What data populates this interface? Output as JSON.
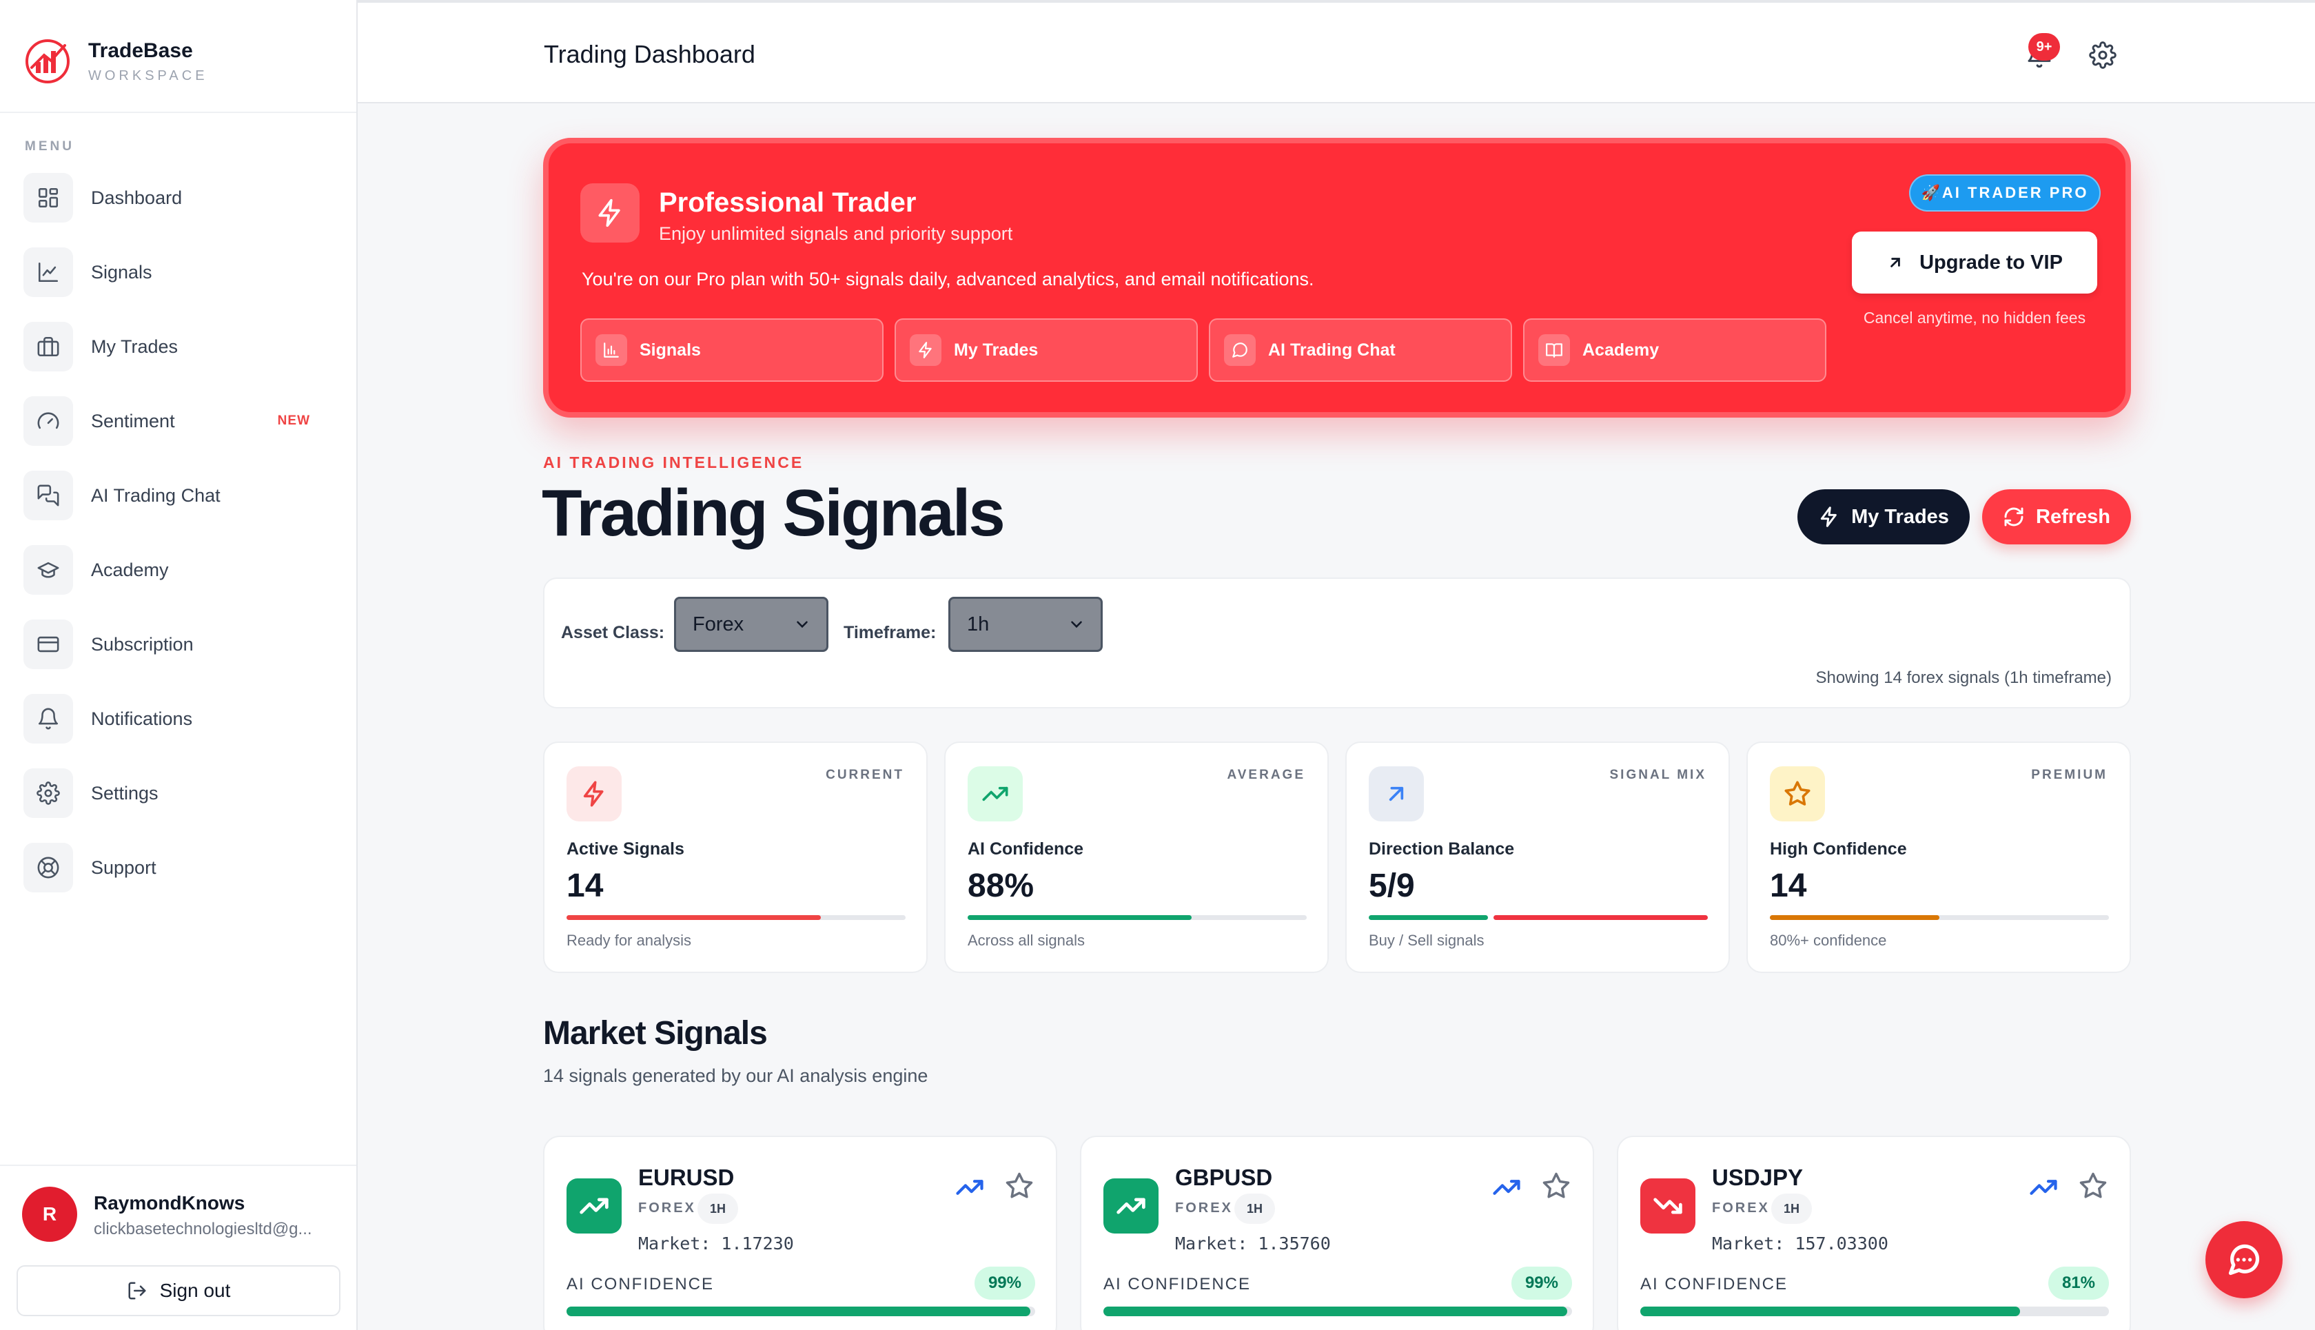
{
  "brand": {
    "name": "TradeBase",
    "sub": "WORKSPACE"
  },
  "sidebar": {
    "menu_heading": "MENU",
    "items": [
      {
        "label": "Dashboard",
        "icon": "grid-icon"
      },
      {
        "label": "Signals",
        "icon": "line-chart-icon"
      },
      {
        "label": "My Trades",
        "icon": "briefcase-icon"
      },
      {
        "label": "Sentiment",
        "icon": "gauge-icon",
        "badge": "NEW"
      },
      {
        "label": "AI Trading Chat",
        "icon": "chat-bubbles-icon"
      },
      {
        "label": "Academy",
        "icon": "graduation-cap-icon"
      },
      {
        "label": "Subscription",
        "icon": "credit-card-icon"
      },
      {
        "label": "Notifications",
        "icon": "bell-icon"
      },
      {
        "label": "Settings",
        "icon": "gear-icon"
      },
      {
        "label": "Support",
        "icon": "lifebuoy-icon"
      }
    ]
  },
  "user": {
    "initial": "R",
    "name": "RaymondKnows",
    "email": "clickbasetechnologiesltd@g...",
    "signout_label": "Sign out"
  },
  "topbar": {
    "title": "Trading Dashboard",
    "notification_count": "9+"
  },
  "promo": {
    "title": "Professional Trader",
    "subtitle": "Enjoy unlimited signals and priority support",
    "description": "You're on our Pro plan with 50+ signals daily, advanced analytics, and email notifications.",
    "badge": "🚀AI TRADER PRO",
    "upgrade_label": "Upgrade to VIP",
    "upgrade_note": "Cancel anytime, no hidden fees",
    "links": [
      {
        "label": "Signals",
        "icon": "bar-chart-icon"
      },
      {
        "label": "My Trades",
        "icon": "lightning-icon"
      },
      {
        "label": "AI Trading Chat",
        "icon": "chat-icon"
      },
      {
        "label": "Academy",
        "icon": "book-icon"
      }
    ]
  },
  "header": {
    "eyebrow": "AI TRADING INTELLIGENCE",
    "title": "Trading Signals",
    "my_trades_label": "My Trades",
    "refresh_label": "Refresh"
  },
  "filters": {
    "asset_label": "Asset Class:",
    "asset_value": "Forex",
    "timeframe_label": "Timeframe:",
    "timeframe_value": "1h",
    "summary": "Showing 14 forex signals (1h timeframe)"
  },
  "stats": [
    {
      "tag": "CURRENT",
      "label": "Active Signals",
      "value": "14",
      "foot": "Ready for analysis",
      "icon": "lightning-icon",
      "color": "#ef4444",
      "progress": 0.75
    },
    {
      "tag": "AVERAGE",
      "label": "AI Confidence",
      "value": "88%",
      "foot": "Across all signals",
      "icon": "trending-up-icon",
      "color": "#10a46d",
      "progress": 0.66
    },
    {
      "tag": "SIGNAL MIX",
      "label": "Direction Balance",
      "value": "5/9",
      "foot": "Buy / Sell signals",
      "icon": "arrow-up-right-icon",
      "color": "#3b82f6",
      "buy": 5,
      "sell": 9
    },
    {
      "tag": "PREMIUM",
      "label": "High Confidence",
      "value": "14",
      "foot": "80%+ confidence",
      "icon": "star-icon",
      "color": "#d97706",
      "progress": 0.5
    }
  ],
  "market": {
    "title": "Market Signals",
    "subtitle": "14 signals generated by our AI analysis engine",
    "conf_label": "AI CONFIDENCE",
    "signals": [
      {
        "symbol": "EURUSD",
        "class": "FOREX",
        "tf": "1H",
        "market": "Market: 1.17230",
        "confidence": "99%",
        "conf_value": 0.99,
        "direction": "up"
      },
      {
        "symbol": "GBPUSD",
        "class": "FOREX",
        "tf": "1H",
        "market": "Market: 1.35760",
        "confidence": "99%",
        "conf_value": 0.99,
        "direction": "up"
      },
      {
        "symbol": "USDJPY",
        "class": "FOREX",
        "tf": "1H",
        "market": "Market: 157.03300",
        "confidence": "81%",
        "conf_value": 0.81,
        "direction": "down"
      }
    ]
  },
  "colors": {
    "brand_red": "#ff2d38",
    "buy_green": "#10a46d",
    "sell_red": "#ef3340",
    "dark": "#0f172a"
  }
}
